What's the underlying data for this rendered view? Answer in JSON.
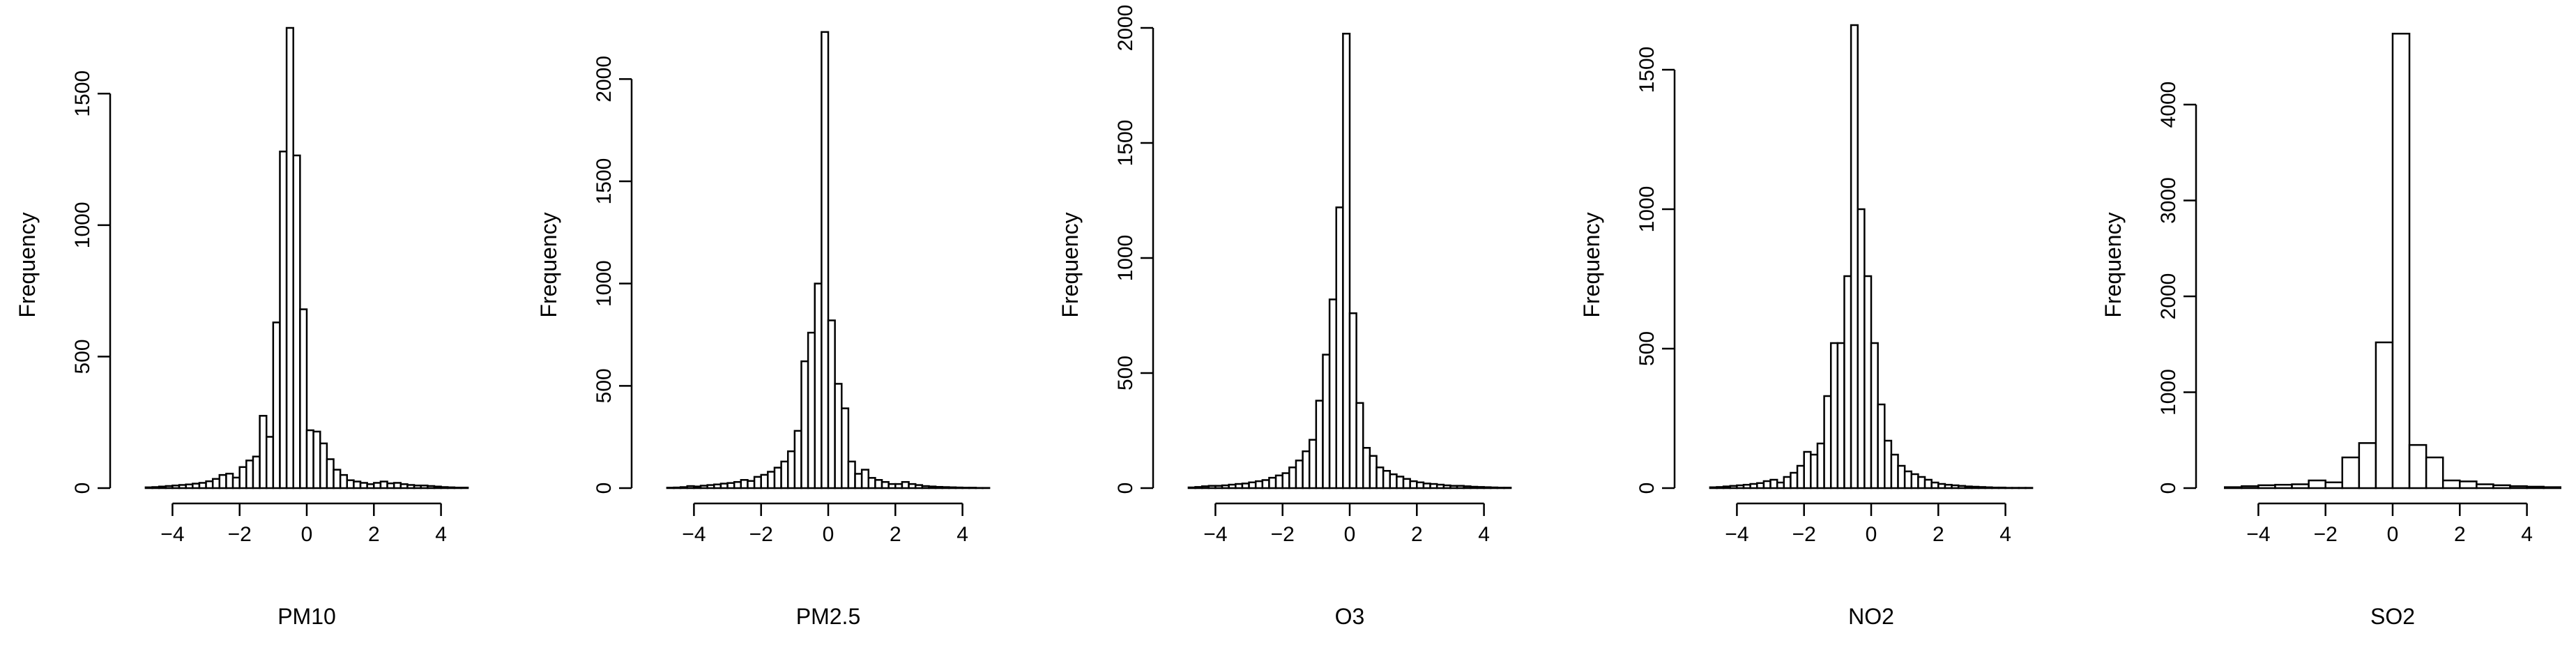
{
  "figure": {
    "background": "#ffffff",
    "bar_fill": "#ffffff",
    "stroke": "#000000"
  },
  "chart_data": [
    {
      "type": "bar",
      "title": "",
      "xlabel": "PM10",
      "ylabel": "Frequency",
      "xlim": [
        -5.4,
        5.4
      ],
      "ylim": [
        0,
        1750
      ],
      "xticks": [
        -4,
        -2,
        0,
        2,
        4
      ],
      "yticks": [
        0,
        500,
        1000,
        1500
      ],
      "bin_width": 0.2,
      "bin_start": -4.8,
      "values": [
        3,
        4,
        6,
        8,
        10,
        12,
        14,
        17,
        20,
        26,
        35,
        50,
        55,
        40,
        80,
        105,
        120,
        275,
        195,
        630,
        1280,
        1750,
        1265,
        680,
        220,
        215,
        170,
        110,
        70,
        50,
        30,
        25,
        20,
        15,
        20,
        25,
        18,
        20,
        15,
        12,
        10,
        10,
        8,
        6,
        4,
        3,
        2,
        2
      ]
    },
    {
      "type": "bar",
      "title": "",
      "xlabel": "PM2.5",
      "ylabel": "Frequency",
      "xlim": [
        -5.4,
        5.4
      ],
      "ylim": [
        0,
        2250
      ],
      "xticks": [
        -4,
        -2,
        0,
        2,
        4
      ],
      "yticks": [
        0,
        500,
        1000,
        1500,
        2000
      ],
      "bin_width": 0.2,
      "bin_start": -4.8,
      "values": [
        2,
        3,
        5,
        10,
        8,
        12,
        15,
        18,
        22,
        25,
        30,
        40,
        35,
        55,
        65,
        80,
        100,
        130,
        180,
        280,
        620,
        760,
        1000,
        2230,
        820,
        510,
        390,
        130,
        70,
        90,
        50,
        40,
        30,
        20,
        20,
        30,
        20,
        15,
        10,
        8,
        6,
        5,
        4,
        3,
        2,
        2,
        1,
        1
      ]
    },
    {
      "type": "bar",
      "title": "",
      "xlabel": "O3",
      "ylabel": "Frequency",
      "xlim": [
        -5.4,
        5.4
      ],
      "ylim": [
        0,
        2000
      ],
      "xticks": [
        -4,
        -2,
        0,
        2,
        4
      ],
      "yticks": [
        0,
        500,
        1000,
        1500,
        2000
      ],
      "bin_width": 0.2,
      "bin_start": -4.8,
      "values": [
        3,
        5,
        8,
        10,
        10,
        12,
        15,
        18,
        20,
        25,
        30,
        35,
        45,
        55,
        65,
        90,
        120,
        160,
        210,
        380,
        580,
        820,
        1220,
        1975,
        760,
        370,
        175,
        140,
        90,
        75,
        60,
        50,
        40,
        30,
        25,
        20,
        18,
        15,
        12,
        10,
        10,
        8,
        6,
        5,
        4,
        3,
        2,
        2
      ]
    },
    {
      "type": "bar",
      "title": "",
      "xlabel": "NO2",
      "ylabel": "Frequency",
      "xlim": [
        -5.4,
        5.4
      ],
      "ylim": [
        0,
        1650
      ],
      "xticks": [
        -4,
        -2,
        0,
        2,
        4
      ],
      "yticks": [
        0,
        500,
        1000,
        1500
      ],
      "bin_width": 0.2,
      "bin_start": -4.8,
      "values": [
        3,
        4,
        6,
        8,
        10,
        12,
        15,
        18,
        25,
        30,
        20,
        40,
        55,
        80,
        130,
        120,
        160,
        330,
        520,
        520,
        760,
        1660,
        1000,
        760,
        520,
        300,
        170,
        120,
        80,
        60,
        50,
        40,
        30,
        20,
        15,
        12,
        10,
        8,
        6,
        5,
        4,
        3,
        2,
        2,
        1,
        1,
        1,
        1
      ]
    },
    {
      "type": "bar",
      "title": "",
      "xlabel": "SO2",
      "ylabel": "Frequency",
      "xlim": [
        -5.4,
        5.4
      ],
      "ylim": [
        0,
        4800
      ],
      "xticks": [
        -4,
        -2,
        0,
        2,
        4
      ],
      "yticks": [
        0,
        1000,
        2000,
        3000,
        4000
      ],
      "bin_width": 0.5,
      "bin_start": -5.0,
      "values": [
        10,
        20,
        30,
        35,
        40,
        80,
        60,
        320,
        470,
        1520,
        4740,
        450,
        320,
        80,
        70,
        40,
        30,
        20,
        15,
        10
      ]
    }
  ]
}
